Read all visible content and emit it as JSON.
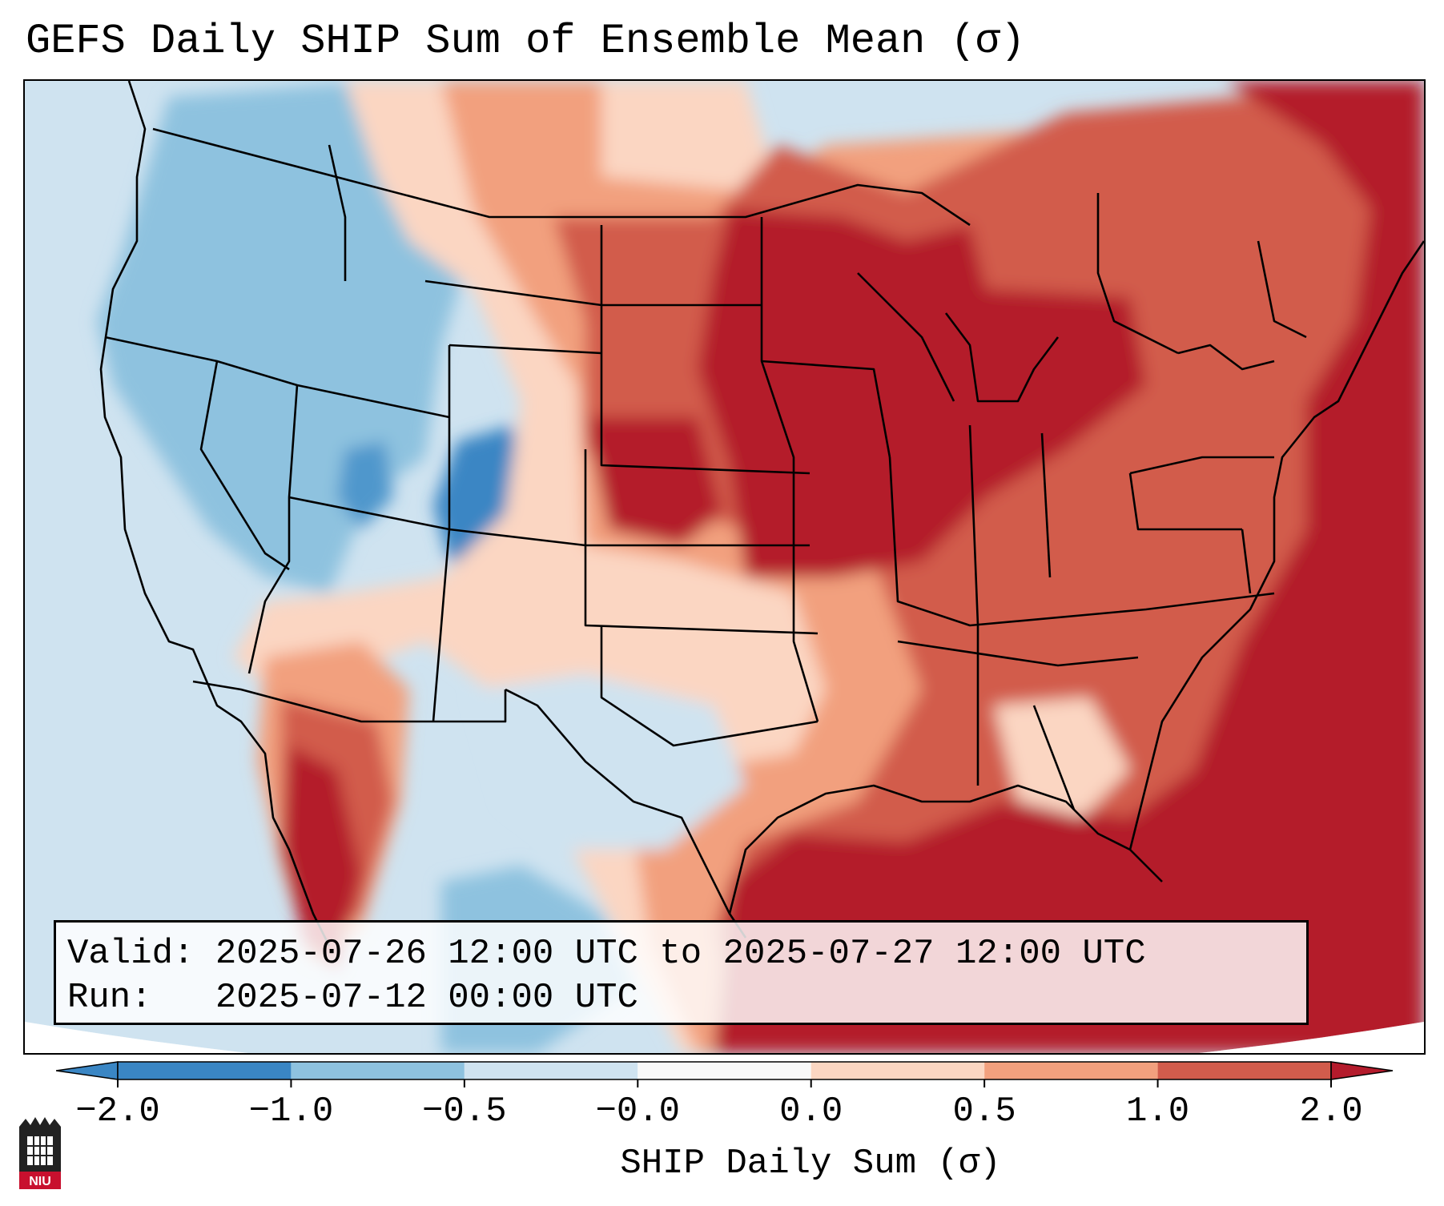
{
  "title": "GEFS Daily SHIP Sum of Ensemble Mean (σ)",
  "info": {
    "valid_line": "Valid: 2025-07-26 12:00 UTC to 2025-07-27 12:00 UTC",
    "run_line": "Run:   2025-07-12 00:00 UTC"
  },
  "colorbar": {
    "label": "SHIP Daily Sum (σ)",
    "bounds": [
      -2.0,
      -1.0,
      -0.5,
      -0.0,
      0.0,
      0.5,
      1.0,
      2.0
    ],
    "tick_labels": [
      "−2.0",
      "−1.0",
      "−0.5",
      "−0.0",
      "0.0",
      "0.5",
      "1.0",
      "2.0"
    ],
    "colors": [
      "#3a86c4",
      "#8ec2df",
      "#cfe3f0",
      "#f8f8f8",
      "#fbd6c2",
      "#f2a07e",
      "#d25c4c",
      "#b41b2c"
    ],
    "extend": "both"
  },
  "map": {
    "projection": "Lambert conformal, CONUS",
    "field": "SHIP daily sum anomaly (σ)"
  },
  "logo": {
    "icon": "niu-logo-icon",
    "text": "NIU"
  }
}
